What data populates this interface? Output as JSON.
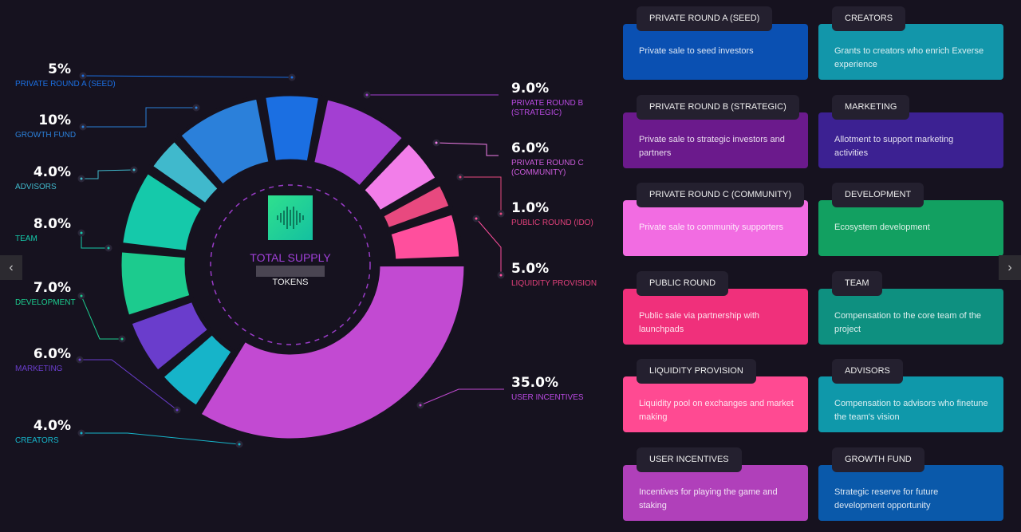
{
  "center": {
    "title": "TOTAL SUPPLY",
    "unit": "TOKENS"
  },
  "chart_data": {
    "type": "pie",
    "title": "TOTAL SUPPLY",
    "segments": [
      {
        "name": "PRIVATE ROUND A (SEED)",
        "value": 5,
        "label": "5%",
        "color": "#1b6fe2"
      },
      {
        "name": "PRIVATE ROUND B (STRATEGIC)",
        "value": 9,
        "label": "9.0%",
        "color": "#a33fd2"
      },
      {
        "name": "PRIVATE ROUND C (COMMUNITY)",
        "value": 6,
        "label": "6.0%",
        "color": "#f27ee9"
      },
      {
        "name": "PUBLIC ROUND (IDO)",
        "value": 1,
        "label": "1.0%",
        "color": "#e8497f"
      },
      {
        "name": "LIQUIDITY PROVISION",
        "value": 5,
        "label": "5.0%",
        "color": "#ff4f9d"
      },
      {
        "name": "USER INCENTIVES",
        "value": 35,
        "label": "35.0%",
        "color": "#c24ad2"
      },
      {
        "name": "CREATORS",
        "value": 4,
        "label": "4.0%",
        "color": "#16b4c9"
      },
      {
        "name": "MARKETING",
        "value": 6,
        "label": "6.0%",
        "color": "#6a3dcc"
      },
      {
        "name": "DEVELOPMENT",
        "value": 7,
        "label": "7.0%",
        "color": "#1ccb8e"
      },
      {
        "name": "TEAM",
        "value": 8,
        "label": "8.0%",
        "color": "#15c9aa"
      },
      {
        "name": "ADVISORS",
        "value": 4,
        "label": "4.0%",
        "color": "#40b9cc"
      },
      {
        "name": "GROWTH FUND",
        "value": 10,
        "label": "10%",
        "color": "#2b80da"
      }
    ]
  },
  "cards": [
    {
      "tab": "PRIVATE ROUND A (SEED)",
      "desc": "Private sale to seed investors",
      "color": "#0a50b2"
    },
    {
      "tab": "CREATORS",
      "desc": "Grants to creators who enrich Exverse experience",
      "color": "#1296aa"
    },
    {
      "tab": "PRIVATE ROUND B (STRATEGIC)",
      "desc": "Private sale to strategic investors and partners",
      "color": "#6b1a8c"
    },
    {
      "tab": "MARKETING",
      "desc": "Allotment to support marketing activities",
      "color": "#3c2192"
    },
    {
      "tab": "PRIVATE ROUND C (COMMUNITY)",
      "desc": "Private sale to community supporters",
      "color": "#f26ce2"
    },
    {
      "tab": "DEVELOPMENT",
      "desc": "Ecosystem development",
      "color": "#12a061"
    },
    {
      "tab": "PUBLIC ROUND",
      "desc": "Public sale via partnership with launchpads",
      "color": "#f0307b"
    },
    {
      "tab": "TEAM",
      "desc": "Compensation to the core team of the project",
      "color": "#0e9080"
    },
    {
      "tab": "LIQUIDITY PROVISION",
      "desc": "Liquidity pool on exchanges and market making",
      "color": "#ff4a92"
    },
    {
      "tab": "ADVISORS",
      "desc": "Compensation to advisors who finetune the team's vision",
      "color": "#0f98aa"
    },
    {
      "tab": "USER INCENTIVES",
      "desc": "Incentives for playing the game and staking",
      "color": "#b040ba"
    },
    {
      "tab": "GROWTH FUND",
      "desc": "Strategic reserve for future development opportunity",
      "color": "#0a59aa"
    }
  ],
  "nav": {
    "prev": "‹",
    "next": "›"
  }
}
